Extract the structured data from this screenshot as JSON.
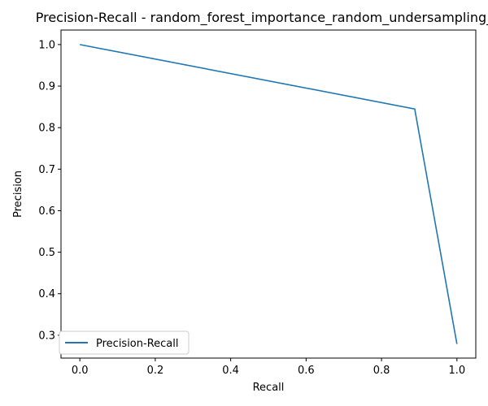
{
  "chart_data": {
    "type": "line",
    "title": "Precision-Recall - random_forest_importance_random_undersampling_d",
    "xlabel": "Recall",
    "ylabel": "Precision",
    "xlim": [
      -0.05,
      1.05
    ],
    "ylim": [
      0.245,
      1.035
    ],
    "x_ticks": [
      0.0,
      0.2,
      0.4,
      0.6,
      0.8,
      1.0
    ],
    "x_tick_labels": [
      "0.0",
      "0.2",
      "0.4",
      "0.6",
      "0.8",
      "1.0"
    ],
    "y_ticks": [
      0.3,
      0.4,
      0.5,
      0.6,
      0.7,
      0.8,
      0.9,
      1.0
    ],
    "y_tick_labels": [
      "0.3",
      "0.4",
      "0.5",
      "0.6",
      "0.7",
      "0.8",
      "0.9",
      "1.0"
    ],
    "grid": false,
    "legend_position": "lower-left",
    "series": [
      {
        "name": "Precision-Recall",
        "color": "#1f77b4",
        "x": [
          0.0,
          0.888,
          1.0
        ],
        "y": [
          1.0,
          0.845,
          0.279
        ]
      }
    ]
  }
}
